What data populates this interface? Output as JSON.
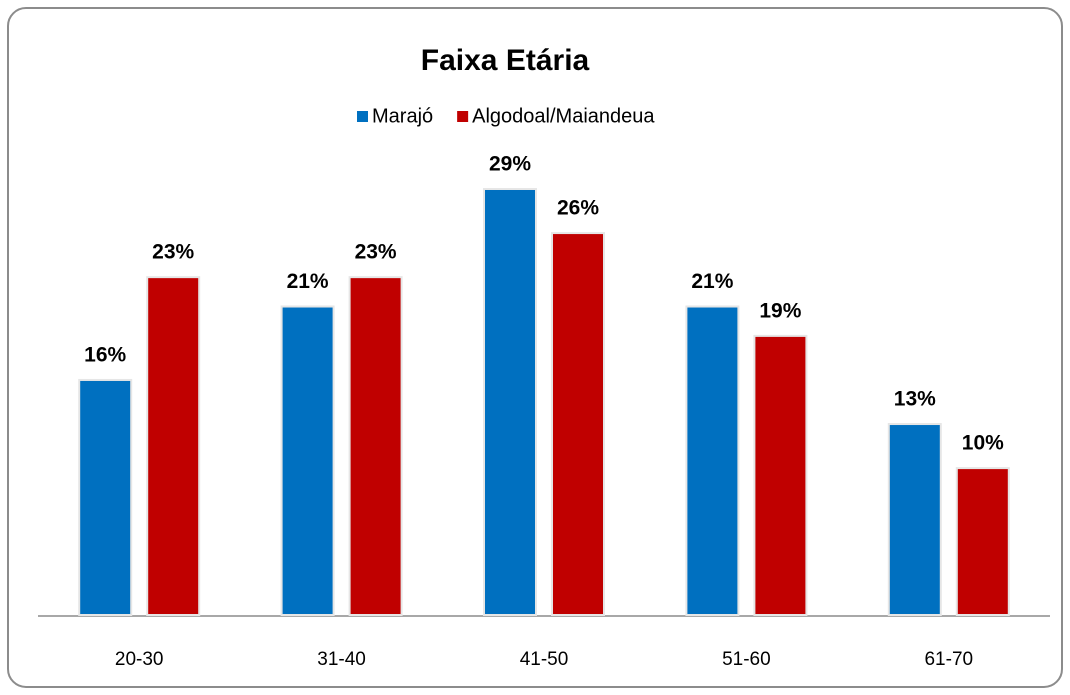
{
  "chart_data": {
    "type": "bar",
    "title": "Faixa Etária",
    "categories": [
      "20-30",
      "31-40",
      "41-50",
      "51-60",
      "61-70"
    ],
    "series": [
      {
        "name": "Marajó",
        "color": "#0070c0",
        "values": [
          16,
          21,
          29,
          21,
          13
        ],
        "value_labels": [
          "16%",
          "21%",
          "29%",
          "21%",
          "13%"
        ]
      },
      {
        "name": "Algodoal/Maiandeua",
        "color": "#c00000",
        "values": [
          23,
          23,
          26,
          19,
          10
        ],
        "value_labels": [
          "23%",
          "23%",
          "26%",
          "19%",
          "10%"
        ]
      }
    ],
    "legend": "top"
  }
}
